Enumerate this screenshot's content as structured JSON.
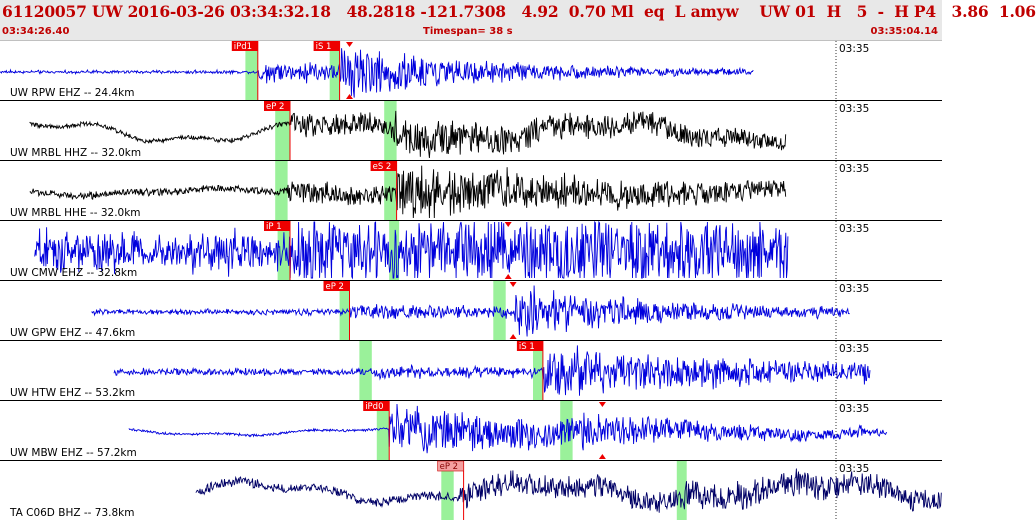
{
  "header": {
    "title": "61120057 UW 2016-03-26 03:34:32.18   48.2818 -121.7308   4.92  0.70 Ml  eq  L amyw    UW 01  H   5  -  H P4   3.86  1.06",
    "start_time": "03:34:26.40",
    "end_time": "03:35:04.14",
    "timespan": "Timespan=  38 s"
  },
  "colors": {
    "blue_trace": "#0000dd",
    "black_trace": "#000000",
    "navy_trace": "#000066",
    "pick": "#ee0000",
    "pick_current": "#f4a0a0",
    "window": "#88ee88"
  },
  "chart_data": {
    "type": "line",
    "title": "61120057 UW 2016-03-26 03:34:32.18",
    "xlabel": "",
    "ylabel": "",
    "time_window_s": [
      0,
      38
    ],
    "start_time": "03:34:26.40",
    "end_time": "03:35:04.14",
    "series": [
      {
        "name": "UW RPW EHZ -- 24.4km",
        "color": "blue",
        "clock": "03:35",
        "data_start_s": 0,
        "data_end_s": 30.4,
        "p_window_s": [
          9.9,
          10.4
        ],
        "s_window_s": [
          13.3,
          13.7
        ],
        "picks": [
          {
            "label": "iPd1",
            "t": 10.4
          },
          {
            "label": "iS 1",
            "t": 13.7
          }
        ],
        "arrivals_s": [
          14.1
        ],
        "onset_s": 10.4,
        "s_onset_s": 13.7,
        "pre_amp": 0.04,
        "p_amp": 0.35,
        "s_amp": 0.85,
        "decay_s": 6,
        "background": "noise",
        "bg_amp": 0.03
      },
      {
        "name": "UW MRBL HHZ -- 32.0km",
        "color": "black",
        "clock": "03:35",
        "data_start_s": 1.2,
        "data_end_s": 31.7,
        "p_window_s": [
          11.1,
          11.7
        ],
        "s_window_s": [
          15.5,
          16.0
        ],
        "picks": [
          {
            "label": "eP 2",
            "t": 11.7
          }
        ],
        "arrivals_s": [],
        "onset_s": 11.7,
        "s_onset_s": 15.9,
        "pre_amp": 0.08,
        "p_amp": 0.35,
        "s_amp": 0.55,
        "decay_s": 14,
        "background": "wave",
        "bg_amp": 0.38
      },
      {
        "name": "UW MRBL HHE -- 32.0km",
        "color": "black",
        "clock": "03:35",
        "data_start_s": 1.2,
        "data_end_s": 31.7,
        "p_window_s": [
          11.1,
          11.6
        ],
        "s_window_s": [
          15.5,
          16.0
        ],
        "picks": [
          {
            "label": "eS 2",
            "t": 16.0
          }
        ],
        "arrivals_s": [],
        "onset_s": 11.6,
        "s_onset_s": 16.0,
        "pre_amp": 0.12,
        "p_amp": 0.25,
        "s_amp": 0.85,
        "decay_s": 9,
        "background": "wave",
        "bg_amp": 0.12
      },
      {
        "name": "UW CMW EHZ -- 32.8km",
        "color": "blue",
        "clock": "03:35",
        "data_start_s": 1.4,
        "data_end_s": 31.8,
        "p_window_s": [
          11.2,
          11.7
        ],
        "s_window_s": [
          15.7,
          16.1
        ],
        "picks": [
          {
            "label": "iP 1",
            "t": 11.7
          }
        ],
        "arrivals_s": [
          20.5
        ],
        "onset_s": 11.7,
        "s_onset_s": 16.1,
        "pre_amp": 0.45,
        "p_amp": 0.6,
        "s_amp": 0.75,
        "decay_s": 30,
        "background": "noise",
        "bg_amp": 0.45
      },
      {
        "name": "UW GPW EHZ -- 47.6km",
        "color": "blue",
        "clock": "03:35",
        "data_start_s": 3.7,
        "data_end_s": 34.3,
        "p_window_s": [
          13.7,
          14.1
        ],
        "s_window_s": [
          19.9,
          20.4
        ],
        "picks": [
          {
            "label": "eP 2",
            "t": 14.1
          }
        ],
        "arrivals_s": [
          20.7
        ],
        "onset_s": 14.1,
        "s_onset_s": 20.7,
        "pre_amp": 0.05,
        "p_amp": 0.22,
        "s_amp": 0.85,
        "decay_s": 6,
        "background": "noise",
        "bg_amp": 0.08
      },
      {
        "name": "UW HTW EHZ -- 53.2km",
        "color": "blue",
        "clock": "03:35",
        "data_start_s": 4.6,
        "data_end_s": 35.1,
        "p_window_s": [
          14.5,
          15.0
        ],
        "s_window_s": [
          21.5,
          21.9
        ],
        "picks": [
          {
            "label": "iS 1",
            "t": 21.9
          }
        ],
        "arrivals_s": [],
        "onset_s": 15.0,
        "s_onset_s": 21.9,
        "pre_amp": 0.05,
        "p_amp": 0.12,
        "s_amp": 0.75,
        "decay_s": 12,
        "background": "noise",
        "bg_amp": 0.1
      },
      {
        "name": "UW MBW EHZ -- 57.2km",
        "color": "blue",
        "clock": "03:35",
        "data_start_s": 5.2,
        "data_end_s": 35.8,
        "p_window_s": [
          15.2,
          15.7
        ],
        "s_window_s": [
          22.6,
          23.1
        ],
        "picks": [
          {
            "label": "iPd0",
            "t": 15.7
          }
        ],
        "arrivals_s": [
          24.3
        ],
        "onset_s": 15.7,
        "s_onset_s": 22.9,
        "pre_amp": 0.04,
        "p_amp": 0.8,
        "s_amp": 0.55,
        "decay_s": 8,
        "background": "wave",
        "bg_amp": 0.12
      },
      {
        "name": "TA C06D BHZ -- 73.8km",
        "color": "navy",
        "clock": "03:35",
        "data_start_s": 7.9,
        "data_end_s": 38,
        "p_window_s": [
          17.8,
          18.3
        ],
        "s_window_s": [
          27.3,
          27.7
        ],
        "picks": [
          {
            "label": "eP 2",
            "t": 18.7,
            "current": true
          }
        ],
        "arrivals_s": [],
        "onset_s": 18.5,
        "s_onset_s": 27.5,
        "pre_amp": 0.15,
        "p_amp": 0.25,
        "s_amp": 0.35,
        "decay_s": 20,
        "background": "wave",
        "bg_amp": 0.35
      }
    ]
  }
}
